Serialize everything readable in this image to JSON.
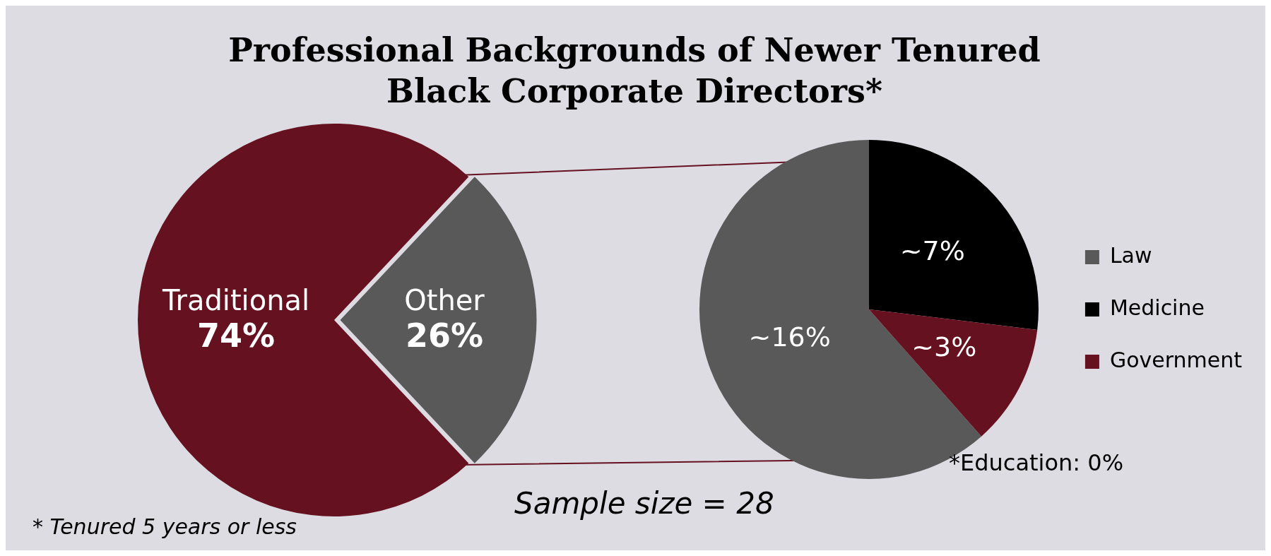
{
  "chart_data": [
    {
      "type": "pie",
      "title": "Professional Backgrounds of Newer Tenured Black Corporate Directors*",
      "categories": [
        "Traditional",
        "Other"
      ],
      "values": [
        74,
        26
      ],
      "colors": [
        "#65111f",
        "#595959"
      ],
      "value_labels": [
        "74%",
        "26%"
      ],
      "legend": false,
      "annotations": [
        "* Tenured 5 years or less",
        "Sample size = 28"
      ]
    },
    {
      "type": "pie",
      "categories": [
        "Law",
        "Medicine",
        "Government"
      ],
      "values": [
        16,
        7,
        3
      ],
      "colors": [
        "#595959",
        "#000000",
        "#65111f"
      ],
      "value_labels": [
        "~16%",
        "~7%",
        "~3%"
      ],
      "legend": "right",
      "annotations": [
        "*Education: 0%"
      ]
    }
  ]
}
